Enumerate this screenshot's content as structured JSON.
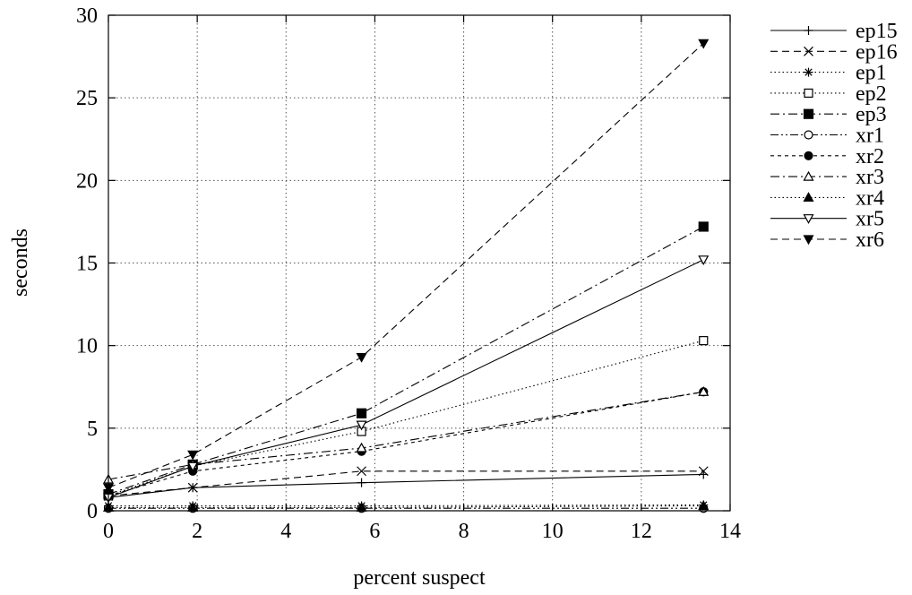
{
  "chart_data": {
    "type": "line",
    "xlabel": "percent suspect",
    "ylabel": "seconds",
    "xlim": [
      0,
      14
    ],
    "ylim": [
      0,
      30
    ],
    "x_ticks": [
      0,
      2,
      4,
      6,
      8,
      10,
      12,
      14
    ],
    "y_ticks": [
      0,
      5,
      10,
      15,
      20,
      25,
      30
    ],
    "grid": true,
    "legend_position": "right, outside plot",
    "series": [
      {
        "name": "ep15",
        "marker": "plus",
        "dash": "solid",
        "points": [
          [
            0,
            0.8
          ],
          [
            1.9,
            1.4
          ],
          [
            5.7,
            1.7
          ],
          [
            13.4,
            2.2
          ]
        ]
      },
      {
        "name": "ep16",
        "marker": "cross",
        "dash": "dashed",
        "points": [
          [
            0,
            0.9
          ],
          [
            1.9,
            1.4
          ],
          [
            5.7,
            2.4
          ],
          [
            13.4,
            2.4
          ]
        ]
      },
      {
        "name": "ep1",
        "marker": "asterisk",
        "dash": "dotted",
        "points": [
          [
            0,
            0.3
          ],
          [
            1.9,
            0.3
          ],
          [
            5.7,
            0.3
          ],
          [
            13.4,
            0.35
          ]
        ]
      },
      {
        "name": "ep2",
        "marker": "square-open",
        "dash": "dotted",
        "points": [
          [
            0,
            0.9
          ],
          [
            1.9,
            2.7
          ],
          [
            5.7,
            4.8
          ],
          [
            13.4,
            10.3
          ]
        ]
      },
      {
        "name": "ep3",
        "marker": "square-filled",
        "dash": "dashdot",
        "points": [
          [
            0,
            1.0
          ],
          [
            1.9,
            2.8
          ],
          [
            5.7,
            5.9
          ],
          [
            13.4,
            17.2
          ]
        ]
      },
      {
        "name": "xr1",
        "marker": "circle-open",
        "dash": "dashdotdot",
        "points": [
          [
            0,
            0.15
          ],
          [
            1.9,
            0.15
          ],
          [
            5.7,
            0.15
          ],
          [
            13.4,
            0.15
          ]
        ]
      },
      {
        "name": "xr2",
        "marker": "circle-filled",
        "dash": "shortdash",
        "points": [
          [
            0,
            0.9
          ],
          [
            1.9,
            2.4
          ],
          [
            5.7,
            3.6
          ],
          [
            13.4,
            7.2
          ]
        ]
      },
      {
        "name": "xr3",
        "marker": "triangle-open",
        "dash": "dashdot",
        "points": [
          [
            0,
            1.9
          ],
          [
            1.9,
            2.8
          ],
          [
            5.7,
            3.8
          ],
          [
            13.4,
            7.2
          ]
        ]
      },
      {
        "name": "xr4",
        "marker": "triangle-filled",
        "dash": "dotted",
        "points": [
          [
            0,
            0.2
          ],
          [
            1.9,
            0.2
          ],
          [
            5.7,
            0.2
          ],
          [
            13.4,
            0.3
          ]
        ]
      },
      {
        "name": "xr5",
        "marker": "triangle-down-open",
        "dash": "solid",
        "points": [
          [
            0,
            0.8
          ],
          [
            1.9,
            2.7
          ],
          [
            5.7,
            5.2
          ],
          [
            13.4,
            15.2
          ]
        ]
      },
      {
        "name": "xr6",
        "marker": "triangle-down-filled",
        "dash": "dashed",
        "points": [
          [
            0,
            1.4
          ],
          [
            1.9,
            3.4
          ],
          [
            5.7,
            9.3
          ],
          [
            13.4,
            28.3
          ]
        ]
      }
    ]
  }
}
